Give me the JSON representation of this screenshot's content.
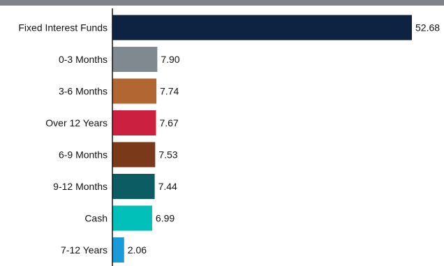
{
  "chart_data": {
    "type": "bar",
    "orientation": "horizontal",
    "categories": [
      "Fixed Interest Funds",
      "0-3 Months",
      "3-6 Months",
      "Over 12 Years",
      "6-9 Months",
      "9-12 Months",
      "Cash",
      "7-12 Years"
    ],
    "values": [
      52.68,
      7.9,
      7.74,
      7.67,
      7.53,
      7.44,
      6.99,
      2.06
    ],
    "value_labels": [
      "52.68",
      "7.90",
      "7.74",
      "7.67",
      "7.53",
      "7.44",
      "6.99",
      "2.06"
    ],
    "colors": [
      "#0e2241",
      "#808890",
      "#b26631",
      "#cb203f",
      "#7a3a1a",
      "#0b5d63",
      "#00c0b9",
      "#1a9ad6"
    ],
    "xlim": [
      0,
      52.68
    ],
    "grid": false,
    "legend": "none"
  },
  "colors": {
    "top_band": "#808387",
    "axis": "#111111",
    "text": "#111111"
  }
}
